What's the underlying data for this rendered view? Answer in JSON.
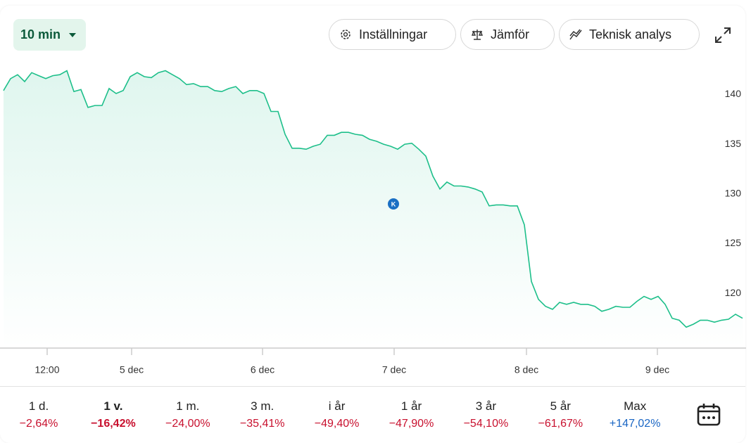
{
  "toolbar": {
    "interval": "10 min",
    "buttons": [
      "Inställningar",
      "Jämför",
      "Teknisk analys"
    ]
  },
  "chart_data": {
    "type": "line",
    "color": "#1dbf8a",
    "values": [
      140.4,
      141.6,
      142.0,
      141.3,
      142.2,
      141.9,
      141.6,
      141.9,
      142.0,
      142.4,
      140.3,
      140.5,
      138.7,
      138.9,
      138.9,
      140.6,
      140.1,
      140.4,
      141.8,
      142.2,
      141.8,
      141.7,
      142.2,
      142.4,
      142.0,
      141.6,
      141.0,
      141.1,
      140.8,
      140.8,
      140.4,
      140.3,
      140.6,
      140.8,
      140.1,
      140.4,
      140.4,
      140.1,
      138.3,
      138.3,
      136.0,
      134.6,
      134.6,
      134.5,
      134.8,
      135.0,
      135.9,
      135.9,
      136.2,
      136.2,
      136.0,
      135.9,
      135.5,
      135.3,
      135.0,
      134.8,
      134.5,
      135.0,
      135.1,
      134.5,
      133.8,
      131.8,
      130.5,
      131.2,
      130.8,
      130.8,
      130.7,
      130.5,
      130.2,
      128.8,
      128.9,
      128.9,
      128.8,
      128.8,
      126.9,
      121.2,
      119.4,
      118.7,
      118.4,
      119.1,
      118.9,
      119.1,
      118.9,
      118.9,
      118.7,
      118.2,
      118.4,
      118.7,
      118.6,
      118.6,
      119.2,
      119.7,
      119.4,
      119.7,
      118.9,
      117.5,
      117.3,
      116.6,
      116.9,
      117.3,
      117.3,
      117.1,
      117.3,
      117.4,
      117.9,
      117.5
    ],
    "xlim": [
      -0.5,
      105.5
    ],
    "xticks": [
      {
        "value": 6.2,
        "label": "12:00"
      },
      {
        "value": 18.2,
        "label": "5 dec"
      },
      {
        "value": 36.8,
        "label": "6 dec"
      },
      {
        "value": 55.5,
        "label": "7 dec"
      },
      {
        "value": 74.3,
        "label": "8 dec"
      },
      {
        "value": 92.9,
        "label": "9 dec"
      }
    ],
    "ylim": [
      114.5,
      148.8
    ],
    "yticks": [
      120,
      125,
      130,
      135,
      140
    ],
    "annotations": [
      {
        "label": "K",
        "x": 55.4,
        "y": 129
      }
    ]
  },
  "periods": {
    "selected": 1,
    "items": [
      {
        "label": "1 d.",
        "change": "−2,64%",
        "color": "#c8102e"
      },
      {
        "label": "1 v.",
        "change": "−16,42%",
        "color": "#c8102e"
      },
      {
        "label": "1 m.",
        "change": "−24,00%",
        "color": "#c8102e"
      },
      {
        "label": "3 m.",
        "change": "−35,41%",
        "color": "#c8102e"
      },
      {
        "label": "i år",
        "change": "−49,40%",
        "color": "#c8102e"
      },
      {
        "label": "1 år",
        "change": "−47,90%",
        "color": "#c8102e"
      },
      {
        "label": "3 år",
        "change": "−54,10%",
        "color": "#c8102e"
      },
      {
        "label": "5 år",
        "change": "−61,67%",
        "color": "#c8102e"
      },
      {
        "label": "Max",
        "change": "+147,02%",
        "color": "#1a66c4"
      }
    ]
  }
}
